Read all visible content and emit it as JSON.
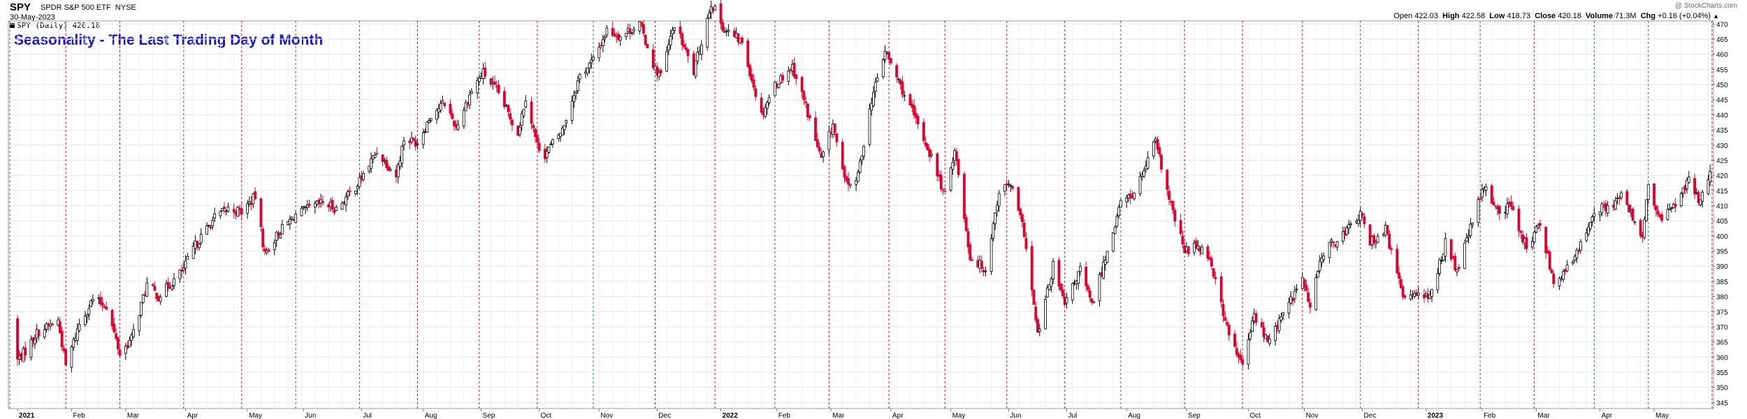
{
  "header": {
    "ticker": "SPY",
    "name": "SPDR S&P 500 ETF",
    "exchange": "NYSE",
    "date": "30-May-2023",
    "watermark": "@ StockCharts.com",
    "open_label": "Open",
    "open_value": "422.03",
    "high_label": "High",
    "high_value": "422.58",
    "low_label": "Low",
    "low_value": "418.73",
    "close_label": "Close",
    "close_value": "420.18",
    "volume_label": "Volume",
    "volume_value": "71.3M",
    "chg_label": "Chg",
    "chg_value": "+0.16 (+0.04%)",
    "legend": "SPY (Daily) 420.18"
  },
  "colors": {
    "up": "#000000",
    "down": "#e1002d",
    "green_line": "#1a8a1a",
    "red_line": "#e1002d",
    "title": "#1414d2"
  },
  "chart_data": {
    "type": "candlestick",
    "title": "Seasonality - The Last Trading Day of Month",
    "ylim": [
      343,
      471
    ],
    "y_ticks": [
      345,
      350,
      355,
      360,
      365,
      370,
      375,
      380,
      385,
      390,
      395,
      400,
      405,
      410,
      415,
      420,
      425,
      430,
      435,
      440,
      445,
      450,
      455,
      460,
      465,
      470
    ],
    "x_start": "2020-12-31",
    "x_end": "2023-05-31",
    "x_tick_labels": [
      {
        "date": "2021-01-04",
        "label": "2021",
        "bold": true
      },
      {
        "date": "2021-02-01",
        "label": "Feb"
      },
      {
        "date": "2021-03-01",
        "label": "Mar"
      },
      {
        "date": "2021-04-01",
        "label": "Apr"
      },
      {
        "date": "2021-05-03",
        "label": "May"
      },
      {
        "date": "2021-06-01",
        "label": "Jun"
      },
      {
        "date": "2021-07-01",
        "label": "Jul"
      },
      {
        "date": "2021-08-02",
        "label": "Aug"
      },
      {
        "date": "2021-09-01",
        "label": "Sep"
      },
      {
        "date": "2021-10-01",
        "label": "Oct"
      },
      {
        "date": "2021-11-01",
        "label": "Nov"
      },
      {
        "date": "2021-12-01",
        "label": "Dec"
      },
      {
        "date": "2022-01-03",
        "label": "2022",
        "bold": true
      },
      {
        "date": "2022-02-01",
        "label": "Feb"
      },
      {
        "date": "2022-03-01",
        "label": "Mar"
      },
      {
        "date": "2022-04-01",
        "label": "Apr"
      },
      {
        "date": "2022-05-02",
        "label": "May"
      },
      {
        "date": "2022-06-01",
        "label": "Jun"
      },
      {
        "date": "2022-07-01",
        "label": "Jul"
      },
      {
        "date": "2022-08-01",
        "label": "Aug"
      },
      {
        "date": "2022-09-01",
        "label": "Sep"
      },
      {
        "date": "2022-10-03",
        "label": "Oct"
      },
      {
        "date": "2022-11-01",
        "label": "Nov"
      },
      {
        "date": "2022-12-01",
        "label": "Dec"
      },
      {
        "date": "2023-01-03",
        "label": "2023",
        "bold": true
      },
      {
        "date": "2023-02-01",
        "label": "Feb"
      },
      {
        "date": "2023-03-01",
        "label": "Mar"
      },
      {
        "date": "2023-04-03",
        "label": "Apr"
      },
      {
        "date": "2023-05-01",
        "label": "May"
      }
    ],
    "month_end_lines": [
      {
        "date": "2020-12-31",
        "color": "green"
      },
      {
        "date": "2021-01-29",
        "color": "red"
      },
      {
        "date": "2021-02-26",
        "color": "red"
      },
      {
        "date": "2021-03-31",
        "color": "green"
      },
      {
        "date": "2021-04-30",
        "color": "red"
      },
      {
        "date": "2021-05-28",
        "color": "green"
      },
      {
        "date": "2021-06-30",
        "color": "green"
      },
      {
        "date": "2021-07-30",
        "color": "red"
      },
      {
        "date": "2021-08-31",
        "color": "red"
      },
      {
        "date": "2021-09-30",
        "color": "red"
      },
      {
        "date": "2021-10-29",
        "color": "green"
      },
      {
        "date": "2021-11-30",
        "color": "red"
      },
      {
        "date": "2021-12-31",
        "color": "red"
      },
      {
        "date": "2022-01-31",
        "color": "green"
      },
      {
        "date": "2022-02-28",
        "color": "red"
      },
      {
        "date": "2022-03-31",
        "color": "red"
      },
      {
        "date": "2022-04-29",
        "color": "red"
      },
      {
        "date": "2022-05-31",
        "color": "red"
      },
      {
        "date": "2022-06-30",
        "color": "red"
      },
      {
        "date": "2022-07-29",
        "color": "green"
      },
      {
        "date": "2022-08-31",
        "color": "red"
      },
      {
        "date": "2022-09-30",
        "color": "red"
      },
      {
        "date": "2022-10-31",
        "color": "red"
      },
      {
        "date": "2022-11-30",
        "color": "green"
      },
      {
        "date": "2022-12-30",
        "color": "red"
      },
      {
        "date": "2023-01-31",
        "color": "green"
      },
      {
        "date": "2023-02-28",
        "color": "red"
      },
      {
        "date": "2023-03-31",
        "color": "green"
      },
      {
        "date": "2023-04-28",
        "color": "green"
      },
      {
        "date": "2023-05-31",
        "color": "red"
      }
    ],
    "price_path": [
      [
        "2020-12-31",
        373
      ],
      [
        "2021-01-04",
        359
      ],
      [
        "2021-01-08",
        362
      ],
      [
        "2021-01-14",
        368
      ],
      [
        "2021-01-25",
        372
      ],
      [
        "2021-01-29",
        357
      ],
      [
        "2021-02-05",
        371
      ],
      [
        "2021-02-12",
        379
      ],
      [
        "2021-02-19",
        377
      ],
      [
        "2021-02-26",
        361
      ],
      [
        "2021-03-04",
        366
      ],
      [
        "2021-03-12",
        384
      ],
      [
        "2021-03-18",
        380
      ],
      [
        "2021-03-24",
        384
      ],
      [
        "2021-03-31",
        389
      ],
      [
        "2021-04-05",
        396
      ],
      [
        "2021-04-16",
        406
      ],
      [
        "2021-04-23",
        409
      ],
      [
        "2021-04-30",
        408
      ],
      [
        "2021-05-07",
        413
      ],
      [
        "2021-05-12",
        394
      ],
      [
        "2021-05-19",
        401
      ],
      [
        "2021-05-28",
        407
      ],
      [
        "2021-06-04",
        409
      ],
      [
        "2021-06-11",
        411
      ],
      [
        "2021-06-18",
        409
      ],
      [
        "2021-06-25",
        414
      ],
      [
        "2021-06-30",
        418
      ],
      [
        "2021-07-09",
        428
      ],
      [
        "2021-07-19",
        420
      ],
      [
        "2021-07-23",
        432
      ],
      [
        "2021-07-30",
        431
      ],
      [
        "2021-08-06",
        440
      ],
      [
        "2021-08-13",
        444
      ],
      [
        "2021-08-19",
        436
      ],
      [
        "2021-08-27",
        448
      ],
      [
        "2021-09-02",
        454
      ],
      [
        "2021-09-10",
        447
      ],
      [
        "2021-09-20",
        434
      ],
      [
        "2021-09-24",
        446
      ],
      [
        "2021-09-30",
        430
      ],
      [
        "2021-10-04",
        427
      ],
      [
        "2021-10-13",
        435
      ],
      [
        "2021-10-22",
        453
      ],
      [
        "2021-10-29",
        458
      ],
      [
        "2021-11-05",
        468
      ],
      [
        "2021-11-12",
        466
      ],
      [
        "2021-11-22",
        470
      ],
      [
        "2021-11-30",
        455
      ],
      [
        "2021-12-03",
        453
      ],
      [
        "2021-12-10",
        470
      ],
      [
        "2021-12-17",
        459
      ],
      [
        "2021-12-20",
        454
      ],
      [
        "2021-12-29",
        477
      ],
      [
        "2022-01-05",
        468
      ],
      [
        "2022-01-14",
        464
      ],
      [
        "2022-01-24",
        440
      ],
      [
        "2022-01-31",
        450
      ],
      [
        "2022-02-09",
        456
      ],
      [
        "2022-02-15",
        445
      ],
      [
        "2022-02-24",
        425
      ],
      [
        "2022-03-02",
        437
      ],
      [
        "2022-03-08",
        418
      ],
      [
        "2022-03-14",
        417
      ],
      [
        "2022-03-22",
        445
      ],
      [
        "2022-03-29",
        461
      ],
      [
        "2022-04-05",
        451
      ],
      [
        "2022-04-14",
        438
      ],
      [
        "2022-04-22",
        426
      ],
      [
        "2022-04-29",
        413
      ],
      [
        "2022-05-04",
        429
      ],
      [
        "2022-05-12",
        393
      ],
      [
        "2022-05-20",
        389
      ],
      [
        "2022-05-27",
        415
      ],
      [
        "2022-06-02",
        417
      ],
      [
        "2022-06-09",
        401
      ],
      [
        "2022-06-16",
        367
      ],
      [
        "2022-06-24",
        390
      ],
      [
        "2022-06-30",
        377
      ],
      [
        "2022-07-08",
        389
      ],
      [
        "2022-07-14",
        377
      ],
      [
        "2022-07-22",
        395
      ],
      [
        "2022-07-29",
        411
      ],
      [
        "2022-08-05",
        414
      ],
      [
        "2022-08-16",
        431
      ],
      [
        "2022-08-23",
        412
      ],
      [
        "2022-08-31",
        395
      ],
      [
        "2022-09-07",
        397
      ],
      [
        "2022-09-13",
        393
      ],
      [
        "2022-09-23",
        367
      ],
      [
        "2022-09-30",
        357
      ],
      [
        "2022-10-06",
        374
      ],
      [
        "2022-10-13",
        365
      ],
      [
        "2022-10-21",
        374
      ],
      [
        "2022-10-31",
        386
      ],
      [
        "2022-11-04",
        376
      ],
      [
        "2022-11-10",
        394
      ],
      [
        "2022-11-23",
        402
      ],
      [
        "2022-11-30",
        407
      ],
      [
        "2022-12-05",
        398
      ],
      [
        "2022-12-13",
        402
      ],
      [
        "2022-12-22",
        380
      ],
      [
        "2022-12-30",
        382
      ],
      [
        "2023-01-05",
        379
      ],
      [
        "2023-01-13",
        398
      ],
      [
        "2023-01-19",
        388
      ],
      [
        "2023-01-27",
        405
      ],
      [
        "2023-02-02",
        416
      ],
      [
        "2023-02-10",
        408
      ],
      [
        "2023-02-16",
        410
      ],
      [
        "2023-02-24",
        396
      ],
      [
        "2023-03-03",
        404
      ],
      [
        "2023-03-10",
        385
      ],
      [
        "2023-03-17",
        389
      ],
      [
        "2023-03-23",
        395
      ],
      [
        "2023-03-31",
        409
      ],
      [
        "2023-04-06",
        409
      ],
      [
        "2023-04-14",
        413
      ],
      [
        "2023-04-25",
        400
      ],
      [
        "2023-04-28",
        416
      ],
      [
        "2023-05-04",
        405
      ],
      [
        "2023-05-12",
        411
      ],
      [
        "2023-05-19",
        418
      ],
      [
        "2023-05-24",
        412
      ],
      [
        "2023-05-30",
        420
      ]
    ]
  }
}
